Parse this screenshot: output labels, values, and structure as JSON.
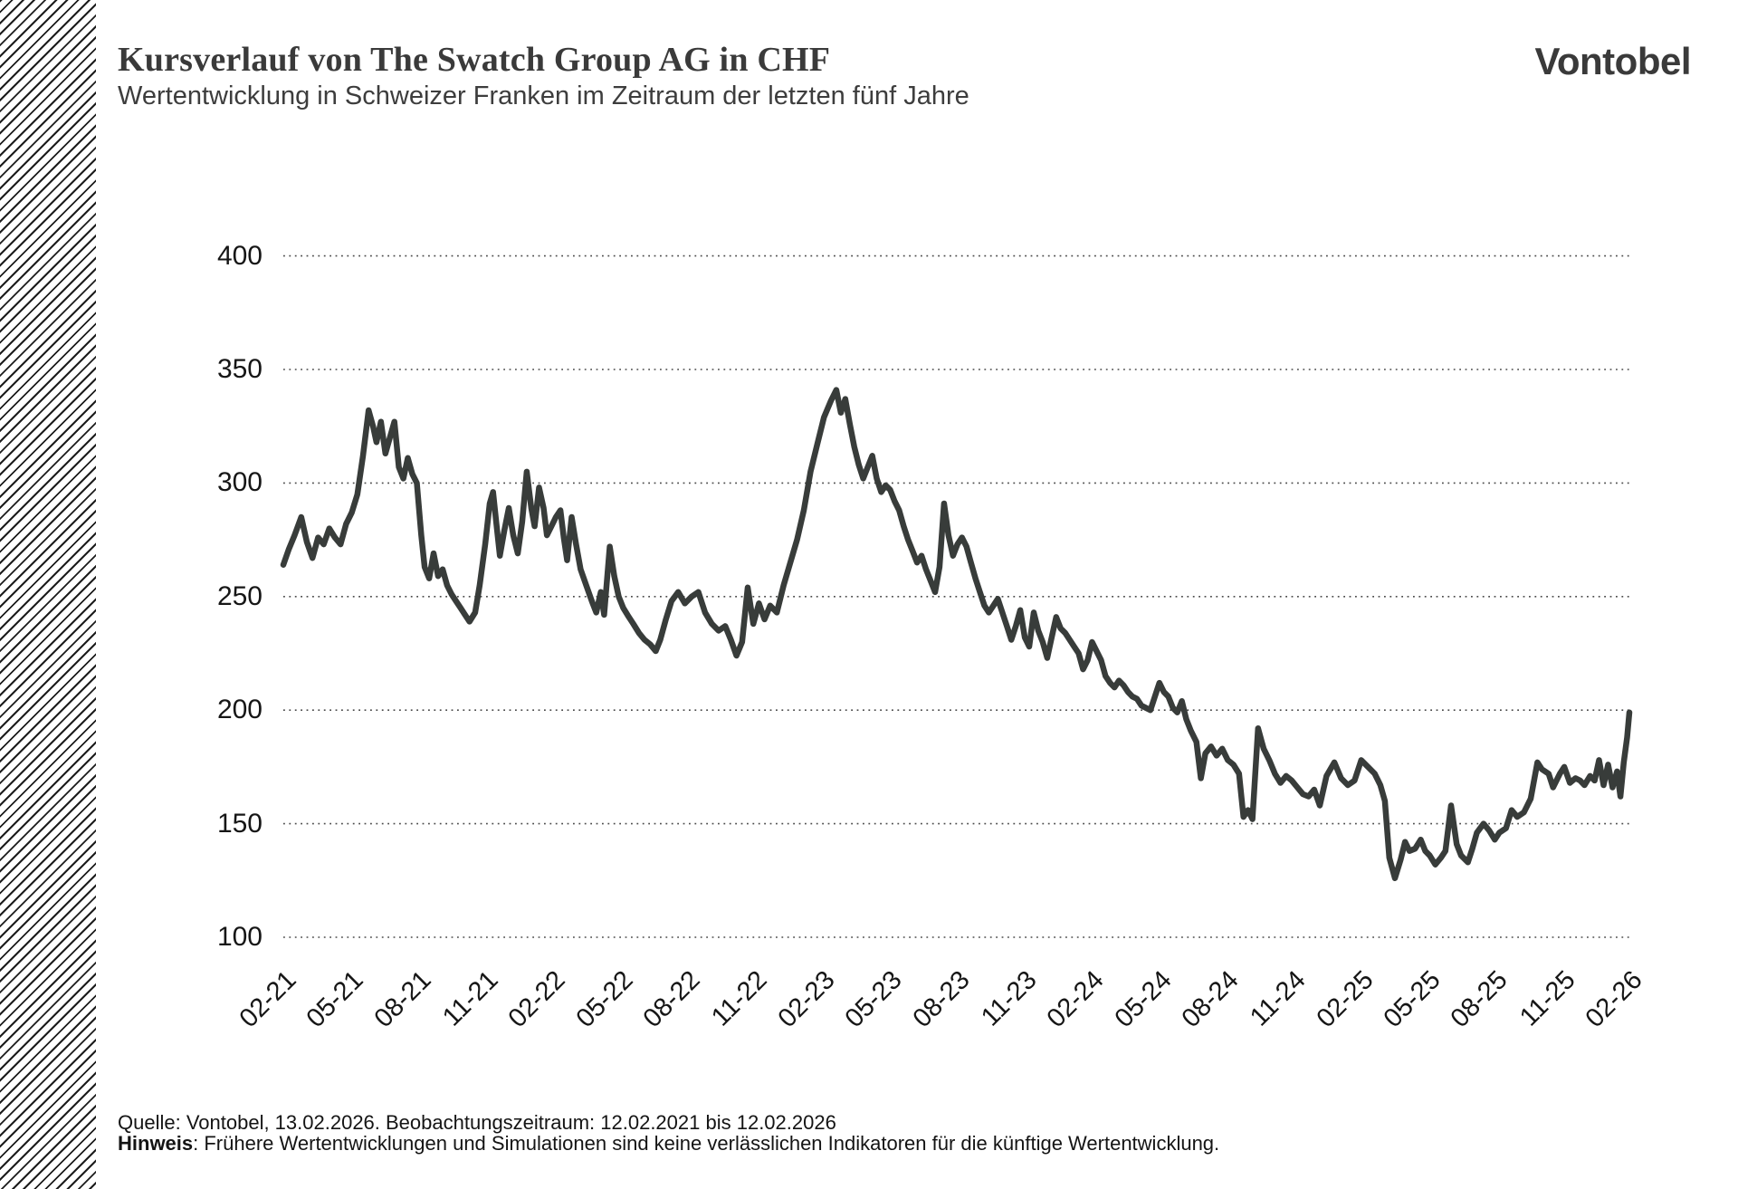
{
  "header": {
    "title": "Kursverlauf von The Swatch Group AG in CHF",
    "subtitle": "Wertentwicklung in Schweizer Franken im Zeitraum der letzten fünf Jahre",
    "logo": "Vontobel"
  },
  "footer": {
    "source": "Quelle: Vontobel, 13.02.2026. Beobachtungszeitraum: 12.02.2021 bis 12.02.2026",
    "hinweis_label": "Hinweis",
    "hinweis_text": ": Frühere Wertentwicklungen und Simulationen sind keine verlässlichen Indikatoren für die künftige Wertentwicklung."
  },
  "chart_data": {
    "type": "line",
    "title": "Kursverlauf von The Swatch Group AG in CHF",
    "subtitle": "Wertentwicklung in Schweizer Franken im Zeitraum der letzten fünf Jahre",
    "x_unit": "Monat-Jahr (MM-JJ), 12.02.2021 bis 12.02.2026",
    "x_tick_labels": [
      "02-21",
      "05-21",
      "08-21",
      "11-21",
      "02-22",
      "05-22",
      "08-22",
      "11-22",
      "02-23",
      "05-23",
      "08-23",
      "11-23",
      "02-24",
      "05-24",
      "08-24",
      "11-24",
      "02-25",
      "05-25",
      "08-25",
      "11-25",
      "02-26"
    ],
    "x_tick_month_offsets": [
      0,
      3,
      6,
      9,
      12,
      15,
      18,
      21,
      24,
      27,
      30,
      33,
      36,
      39,
      42,
      45,
      48,
      51,
      54,
      57,
      60
    ],
    "xlim_months": [
      0,
      60
    ],
    "y_ticks": [
      400,
      350,
      300,
      250,
      200,
      150,
      100
    ],
    "ylim": [
      100,
      400
    ],
    "grid": "horizontal dotted",
    "legend": "none",
    "line_color": "#383c3a",
    "grid_color": "#4a4a4a",
    "series": [
      {
        "name": "The Swatch Group AG (CHF)",
        "points": [
          [
            0,
            264
          ],
          [
            0.25,
            271
          ],
          [
            0.5,
            277
          ],
          [
            0.8,
            285
          ],
          [
            1.05,
            274
          ],
          [
            1.3,
            267
          ],
          [
            1.55,
            276
          ],
          [
            1.8,
            273
          ],
          [
            2.05,
            280
          ],
          [
            2.3,
            276
          ],
          [
            2.55,
            273
          ],
          [
            2.8,
            282
          ],
          [
            3.05,
            287
          ],
          [
            3.3,
            295
          ],
          [
            3.55,
            312
          ],
          [
            3.8,
            332
          ],
          [
            4.0,
            325
          ],
          [
            4.15,
            318
          ],
          [
            4.35,
            327
          ],
          [
            4.55,
            313
          ],
          [
            4.75,
            320
          ],
          [
            4.95,
            327
          ],
          [
            5.15,
            307
          ],
          [
            5.35,
            302
          ],
          [
            5.55,
            311
          ],
          [
            5.75,
            304
          ],
          [
            5.95,
            300
          ],
          [
            6.15,
            277
          ],
          [
            6.3,
            263
          ],
          [
            6.5,
            258
          ],
          [
            6.7,
            269
          ],
          [
            6.9,
            259
          ],
          [
            7.1,
            262
          ],
          [
            7.3,
            255
          ],
          [
            7.5,
            251
          ],
          [
            7.7,
            248
          ],
          [
            7.9,
            245
          ],
          [
            8.1,
            242
          ],
          [
            8.3,
            239
          ],
          [
            8.55,
            243
          ],
          [
            8.75,
            255
          ],
          [
            9.0,
            273
          ],
          [
            9.2,
            291
          ],
          [
            9.35,
            296
          ],
          [
            9.5,
            282
          ],
          [
            9.65,
            268
          ],
          [
            9.85,
            279
          ],
          [
            10.05,
            289
          ],
          [
            10.25,
            277
          ],
          [
            10.45,
            269
          ],
          [
            10.65,
            283
          ],
          [
            10.85,
            305
          ],
          [
            11.05,
            289
          ],
          [
            11.2,
            281
          ],
          [
            11.4,
            298
          ],
          [
            11.6,
            289
          ],
          [
            11.75,
            277
          ],
          [
            11.95,
            281
          ],
          [
            12.15,
            285
          ],
          [
            12.35,
            288
          ],
          [
            12.5,
            276
          ],
          [
            12.65,
            266
          ],
          [
            12.85,
            285
          ],
          [
            13.05,
            273
          ],
          [
            13.25,
            262
          ],
          [
            13.5,
            255
          ],
          [
            13.75,
            248
          ],
          [
            13.95,
            243
          ],
          [
            14.15,
            252
          ],
          [
            14.3,
            242
          ],
          [
            14.55,
            272
          ],
          [
            14.75,
            259
          ],
          [
            14.95,
            250
          ],
          [
            15.15,
            245
          ],
          [
            15.4,
            241
          ],
          [
            15.6,
            238
          ],
          [
            15.85,
            234
          ],
          [
            16.1,
            231
          ],
          [
            16.35,
            229
          ],
          [
            16.6,
            226
          ],
          [
            16.8,
            231
          ],
          [
            17.05,
            240
          ],
          [
            17.3,
            248
          ],
          [
            17.6,
            252
          ],
          [
            17.9,
            247
          ],
          [
            18.2,
            250
          ],
          [
            18.5,
            252
          ],
          [
            18.8,
            243
          ],
          [
            19.1,
            238
          ],
          [
            19.4,
            235
          ],
          [
            19.7,
            237
          ],
          [
            19.95,
            231
          ],
          [
            20.2,
            224
          ],
          [
            20.45,
            230
          ],
          [
            20.7,
            254
          ],
          [
            20.95,
            238
          ],
          [
            21.2,
            247
          ],
          [
            21.45,
            240
          ],
          [
            21.7,
            246
          ],
          [
            22.0,
            243
          ],
          [
            22.3,
            255
          ],
          [
            22.6,
            265
          ],
          [
            22.9,
            275
          ],
          [
            23.2,
            288
          ],
          [
            23.5,
            305
          ],
          [
            23.8,
            317
          ],
          [
            24.1,
            329
          ],
          [
            24.4,
            336
          ],
          [
            24.65,
            341
          ],
          [
            24.85,
            331
          ],
          [
            25.05,
            337
          ],
          [
            25.25,
            326
          ],
          [
            25.45,
            316
          ],
          [
            25.65,
            308
          ],
          [
            25.85,
            302
          ],
          [
            26.05,
            307
          ],
          [
            26.25,
            312
          ],
          [
            26.45,
            302
          ],
          [
            26.65,
            296
          ],
          [
            26.85,
            299
          ],
          [
            27.05,
            297
          ],
          [
            27.25,
            292
          ],
          [
            27.45,
            288
          ],
          [
            27.65,
            281
          ],
          [
            27.85,
            275
          ],
          [
            28.05,
            270
          ],
          [
            28.25,
            265
          ],
          [
            28.45,
            268
          ],
          [
            28.65,
            262
          ],
          [
            28.85,
            257
          ],
          [
            29.05,
            252
          ],
          [
            29.25,
            263
          ],
          [
            29.45,
            291
          ],
          [
            29.65,
            277
          ],
          [
            29.85,
            268
          ],
          [
            30.05,
            273
          ],
          [
            30.25,
            276
          ],
          [
            30.45,
            272
          ],
          [
            30.65,
            265
          ],
          [
            30.85,
            258
          ],
          [
            31.05,
            252
          ],
          [
            31.25,
            246
          ],
          [
            31.45,
            243
          ],
          [
            31.65,
            246
          ],
          [
            31.85,
            249
          ],
          [
            32.05,
            243
          ],
          [
            32.25,
            237
          ],
          [
            32.45,
            231
          ],
          [
            32.65,
            237
          ],
          [
            32.85,
            244
          ],
          [
            33.05,
            232
          ],
          [
            33.25,
            228
          ],
          [
            33.45,
            243
          ],
          [
            33.65,
            235
          ],
          [
            33.85,
            230
          ],
          [
            34.05,
            223
          ],
          [
            34.25,
            232
          ],
          [
            34.45,
            241
          ],
          [
            34.65,
            236
          ],
          [
            34.85,
            234
          ],
          [
            35.05,
            231
          ],
          [
            35.25,
            228
          ],
          [
            35.45,
            225
          ],
          [
            35.65,
            218
          ],
          [
            35.85,
            222
          ],
          [
            36.05,
            230
          ],
          [
            36.25,
            226
          ],
          [
            36.45,
            222
          ],
          [
            36.65,
            215
          ],
          [
            36.85,
            212
          ],
          [
            37.05,
            210
          ],
          [
            37.25,
            213
          ],
          [
            37.45,
            211
          ],
          [
            37.65,
            208
          ],
          [
            37.85,
            206
          ],
          [
            38.05,
            205
          ],
          [
            38.25,
            202
          ],
          [
            38.45,
            201
          ],
          [
            38.65,
            200
          ],
          [
            38.85,
            206
          ],
          [
            39.05,
            212
          ],
          [
            39.25,
            208
          ],
          [
            39.45,
            206
          ],
          [
            39.65,
            201
          ],
          [
            39.85,
            199
          ],
          [
            40.05,
            204
          ],
          [
            40.25,
            196
          ],
          [
            40.45,
            191
          ],
          [
            40.7,
            186
          ],
          [
            40.9,
            170
          ],
          [
            41.1,
            181
          ],
          [
            41.35,
            184
          ],
          [
            41.6,
            180
          ],
          [
            41.85,
            183
          ],
          [
            42.1,
            178
          ],
          [
            42.35,
            176
          ],
          [
            42.6,
            172
          ],
          [
            42.8,
            153
          ],
          [
            43.0,
            156
          ],
          [
            43.2,
            152
          ],
          [
            43.45,
            192
          ],
          [
            43.7,
            183
          ],
          [
            43.95,
            178
          ],
          [
            44.2,
            172
          ],
          [
            44.45,
            168
          ],
          [
            44.7,
            171
          ],
          [
            44.95,
            169
          ],
          [
            45.2,
            166
          ],
          [
            45.45,
            163
          ],
          [
            45.7,
            162
          ],
          [
            45.95,
            165
          ],
          [
            46.2,
            158
          ],
          [
            46.5,
            171
          ],
          [
            46.85,
            177
          ],
          [
            47.15,
            170
          ],
          [
            47.45,
            167
          ],
          [
            47.75,
            169
          ],
          [
            48.05,
            178
          ],
          [
            48.35,
            175
          ],
          [
            48.65,
            172
          ],
          [
            48.9,
            167
          ],
          [
            49.1,
            160
          ],
          [
            49.3,
            135
          ],
          [
            49.55,
            126
          ],
          [
            49.8,
            134
          ],
          [
            50.0,
            142
          ],
          [
            50.2,
            138
          ],
          [
            50.45,
            139
          ],
          [
            50.7,
            143
          ],
          [
            50.9,
            138
          ],
          [
            51.1,
            136
          ],
          [
            51.35,
            132
          ],
          [
            51.6,
            135
          ],
          [
            51.8,
            138
          ],
          [
            52.05,
            158
          ],
          [
            52.3,
            141
          ],
          [
            52.5,
            136
          ],
          [
            52.8,
            133
          ],
          [
            53.0,
            139
          ],
          [
            53.2,
            146
          ],
          [
            53.5,
            150
          ],
          [
            53.75,
            147
          ],
          [
            54.0,
            143
          ],
          [
            54.2,
            146
          ],
          [
            54.5,
            148
          ],
          [
            54.75,
            156
          ],
          [
            55.0,
            153
          ],
          [
            55.3,
            155
          ],
          [
            55.6,
            161
          ],
          [
            55.9,
            177
          ],
          [
            56.1,
            174
          ],
          [
            56.4,
            172
          ],
          [
            56.6,
            166
          ],
          [
            56.9,
            172
          ],
          [
            57.1,
            175
          ],
          [
            57.35,
            168
          ],
          [
            57.6,
            170
          ],
          [
            57.8,
            169
          ],
          [
            58.0,
            167
          ],
          [
            58.25,
            171
          ],
          [
            58.45,
            169
          ],
          [
            58.65,
            178
          ],
          [
            58.85,
            167
          ],
          [
            59.05,
            176
          ],
          [
            59.25,
            166
          ],
          [
            59.45,
            173
          ],
          [
            59.6,
            162
          ],
          [
            59.75,
            177
          ],
          [
            59.9,
            188
          ],
          [
            60,
            199
          ]
        ]
      }
    ]
  }
}
